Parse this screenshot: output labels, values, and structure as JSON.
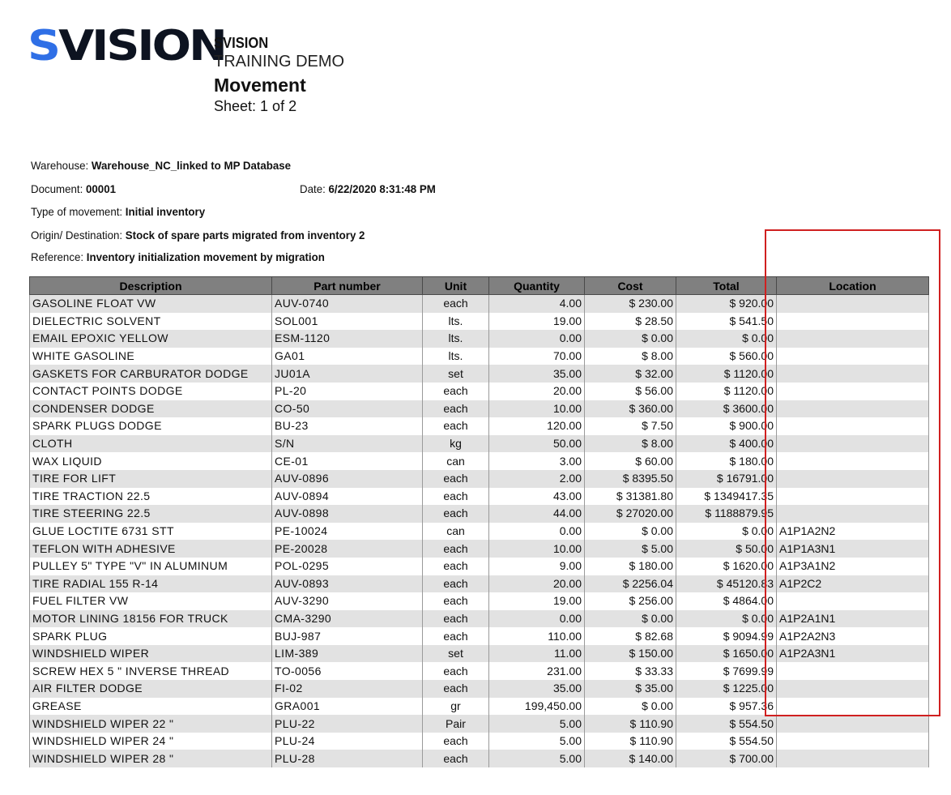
{
  "header": {
    "logo_prefix": "S",
    "logo_rest": "VISION",
    "company": "SVISION",
    "subtitle": "TRAINING DEMO",
    "title": "Movement",
    "sheet": "Sheet:  1 of 2"
  },
  "meta": {
    "warehouse_label": "Warehouse:",
    "warehouse_value": "Warehouse_NC_linked to MP Database",
    "document_label": "Document:",
    "document_value": "00001",
    "date_label": "Date:",
    "date_value": "6/22/2020 8:31:48 PM",
    "type_label": "Type of movement:",
    "type_value": "Initial inventory",
    "origin_label": "Origin/ Destination:",
    "origin_value": "Stock of spare parts migrated from inventory 2",
    "reference_label": "Reference:",
    "reference_value": "Inventory initialization movement by migration"
  },
  "table": {
    "columns": [
      "Description",
      "Part number",
      "Unit",
      "Quantity",
      "Cost",
      "Total",
      "Location"
    ],
    "rows": [
      {
        "desc": "GASOLINE FLOAT VW",
        "part": "AUV-0740",
        "unit": "each",
        "qty": "4.00",
        "cost": "$ 230.00",
        "total": "$ 920.00",
        "loc": ""
      },
      {
        "desc": "DIELECTRIC SOLVENT",
        "part": "SOL001",
        "unit": "lts.",
        "qty": "19.00",
        "cost": "$ 28.50",
        "total": "$ 541.50",
        "loc": ""
      },
      {
        "desc": "EMAIL EPOXIC YELLOW",
        "part": "ESM-1120",
        "unit": "lts.",
        "qty": "0.00",
        "cost": "$ 0.00",
        "total": "$ 0.00",
        "loc": ""
      },
      {
        "desc": "WHITE GASOLINE",
        "part": "GA01",
        "unit": "lts.",
        "qty": "70.00",
        "cost": "$ 8.00",
        "total": "$ 560.00",
        "loc": ""
      },
      {
        "desc": "GASKETS FOR CARBURATOR DODGE",
        "part": "JU01A",
        "unit": "set",
        "qty": "35.00",
        "cost": "$ 32.00",
        "total": "$ 1120.00",
        "loc": ""
      },
      {
        "desc": "CONTACT POINTS DODGE",
        "part": "PL-20",
        "unit": "each",
        "qty": "20.00",
        "cost": "$ 56.00",
        "total": "$ 1120.00",
        "loc": ""
      },
      {
        "desc": "CONDENSER DODGE",
        "part": "CO-50",
        "unit": "each",
        "qty": "10.00",
        "cost": "$ 360.00",
        "total": "$ 3600.00",
        "loc": ""
      },
      {
        "desc": "SPARK PLUGS DODGE",
        "part": "BU-23",
        "unit": "each",
        "qty": "120.00",
        "cost": "$ 7.50",
        "total": "$ 900.00",
        "loc": ""
      },
      {
        "desc": "CLOTH",
        "part": "S/N",
        "unit": "kg",
        "qty": "50.00",
        "cost": "$ 8.00",
        "total": "$ 400.00",
        "loc": ""
      },
      {
        "desc": "WAX LIQUID",
        "part": "CE-01",
        "unit": "can",
        "qty": "3.00",
        "cost": "$ 60.00",
        "total": "$ 180.00",
        "loc": ""
      },
      {
        "desc": "TIRE FOR LIFT",
        "part": "AUV-0896",
        "unit": "each",
        "qty": "2.00",
        "cost": "$ 8395.50",
        "total": "$ 16791.00",
        "loc": ""
      },
      {
        "desc": "TIRE TRACTION 22.5",
        "part": "AUV-0894",
        "unit": "each",
        "qty": "43.00",
        "cost": "$ 31381.80",
        "total": "$ 1349417.35",
        "loc": ""
      },
      {
        "desc": "TIRE STEERING 22.5",
        "part": "AUV-0898",
        "unit": "each",
        "qty": "44.00",
        "cost": "$ 27020.00",
        "total": "$ 1188879.95",
        "loc": ""
      },
      {
        "desc": "GLUE LOCTITE 6731 STT",
        "part": "PE-10024",
        "unit": "can",
        "qty": "0.00",
        "cost": "$ 0.00",
        "total": "$ 0.00",
        "loc": "A1P1A2N2"
      },
      {
        "desc": "TEFLON WITH ADHESIVE",
        "part": "PE-20028",
        "unit": "each",
        "qty": "10.00",
        "cost": "$ 5.00",
        "total": "$ 50.00",
        "loc": "A1P1A3N1"
      },
      {
        "desc": "PULLEY  5\" TYPE \"V\" IN ALUMINUM",
        "part": "POL-0295",
        "unit": "each",
        "qty": "9.00",
        "cost": "$ 180.00",
        "total": "$ 1620.00",
        "loc": "A1P3A1N2"
      },
      {
        "desc": "TIRE RADIAL 155 R-14",
        "part": "AUV-0893",
        "unit": "each",
        "qty": "20.00",
        "cost": "$ 2256.04",
        "total": "$ 45120.83",
        "loc": "A1P2C2"
      },
      {
        "desc": "FUEL FILTER VW",
        "part": "AUV-3290",
        "unit": "each",
        "qty": "19.00",
        "cost": "$ 256.00",
        "total": "$ 4864.00",
        "loc": ""
      },
      {
        "desc": "MOTOR LINING 18156 FOR TRUCK",
        "part": "CMA-3290",
        "unit": "each",
        "qty": "0.00",
        "cost": "$ 0.00",
        "total": "$ 0.00",
        "loc": "A1P2A1N1"
      },
      {
        "desc": "SPARK PLUG",
        "part": "BUJ-987",
        "unit": "each",
        "qty": "110.00",
        "cost": "$ 82.68",
        "total": "$ 9094.99",
        "loc": "A1P2A2N3"
      },
      {
        "desc": "WINDSHIELD WIPER",
        "part": "LIM-389",
        "unit": "set",
        "qty": "11.00",
        "cost": "$ 150.00",
        "total": "$ 1650.00",
        "loc": "A1P2A3N1"
      },
      {
        "desc": "SCREW HEX  5 \" INVERSE THREAD",
        "part": "TO-0056",
        "unit": "each",
        "qty": "231.00",
        "cost": "$ 33.33",
        "total": "$ 7699.99",
        "loc": ""
      },
      {
        "desc": "AIR FILTER DODGE",
        "part": "FI-02",
        "unit": "each",
        "qty": "35.00",
        "cost": "$ 35.00",
        "total": "$ 1225.00",
        "loc": ""
      },
      {
        "desc": "GREASE",
        "part": "GRA001",
        "unit": "gr",
        "qty": "199,450.00",
        "cost": "$ 0.00",
        "total": "$ 957.36",
        "loc": ""
      },
      {
        "desc": "WINDSHIELD  WIPER 22 \"",
        "part": "PLU-22",
        "unit": "Pair",
        "qty": "5.00",
        "cost": "$ 110.90",
        "total": "$ 554.50",
        "loc": ""
      },
      {
        "desc": "WINDSHIELD  WIPER 24 \"",
        "part": "PLU-24",
        "unit": "each",
        "qty": "5.00",
        "cost": "$ 110.90",
        "total": "$ 554.50",
        "loc": ""
      },
      {
        "desc": "WINDSHIELD  WIPER 28 \"",
        "part": "PLU-28",
        "unit": "each",
        "qty": "5.00",
        "cost": "$ 140.00",
        "total": "$ 700.00",
        "loc": ""
      }
    ]
  },
  "annotation": {
    "highlight_color": "#d02020",
    "highlight_target": "Location column"
  },
  "colors": {
    "logo_accent": "#2f6fe6",
    "logo_dark": "#0d1320",
    "header_bg": "#808080",
    "stripe_bg": "#e2e2e2"
  }
}
